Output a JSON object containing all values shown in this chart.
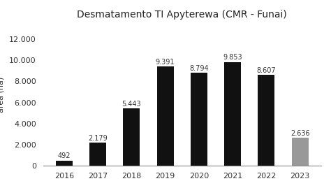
{
  "title": "Desmatamento TI Apyterewa (CMR - Funai)",
  "years": [
    "2016",
    "2017",
    "2018",
    "2019",
    "2020",
    "2021",
    "2022",
    "2023"
  ],
  "values": [
    492,
    2179,
    5443,
    9391,
    8794,
    9853,
    8607,
    2636
  ],
  "bar_colors": [
    "#111111",
    "#111111",
    "#111111",
    "#111111",
    "#111111",
    "#111111",
    "#111111",
    "#999999"
  ],
  "ylabel": "área (ha)",
  "ylim": [
    0,
    13500
  ],
  "yticks": [
    0,
    2000,
    4000,
    6000,
    8000,
    10000,
    12000
  ],
  "ytick_labels": [
    "0",
    "2.000",
    "4.000",
    "6.000",
    "8.000",
    "10.000",
    "12.000"
  ],
  "bar_label_fontsize": 7,
  "title_fontsize": 10,
  "ylabel_fontsize": 8,
  "xtick_fontsize": 8,
  "ytick_fontsize": 8,
  "background_color": "#ffffff"
}
